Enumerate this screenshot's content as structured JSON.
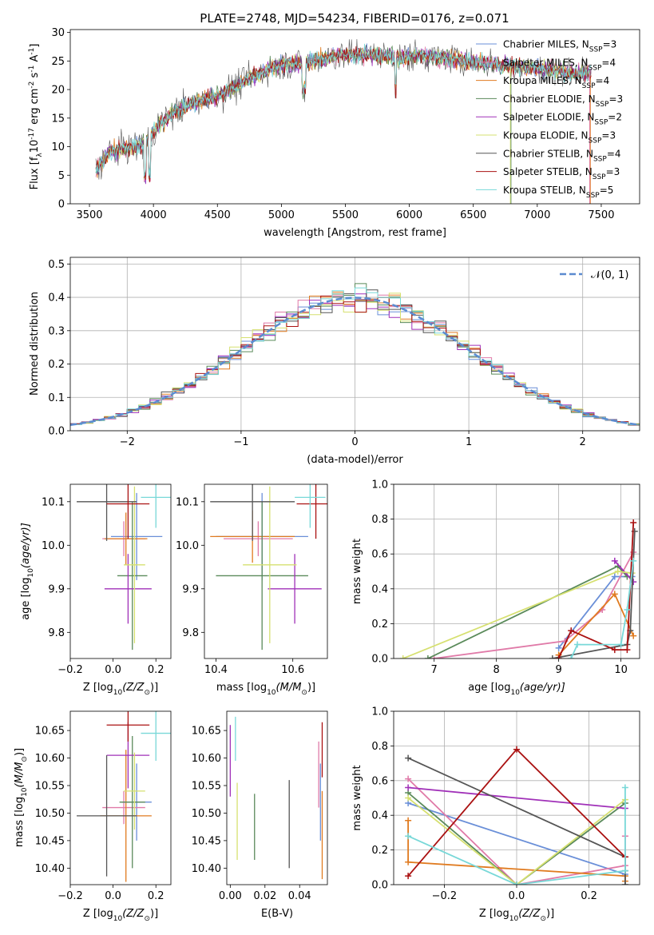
{
  "figure": {
    "title": "PLATE=2748, MJD=54234, FIBERID=0176, z=0.071"
  },
  "styles": {
    "colors": {
      "Chabrier MILES": "#6a8fd8",
      "Salpeter MILES": "#e07aa8",
      "Kroupa MILES": "#e07b20",
      "Chabrier ELODIE": "#5a8a5a",
      "Salpeter ELODIE": "#a030b8",
      "Kroupa ELODIE": "#d6e070",
      "Chabrier STELIB": "#555555",
      "Salpeter STELIB": "#aa1111",
      "Kroupa STELIB": "#78d8d8"
    },
    "normal_color": "#5b8bd0"
  },
  "chart_data": [
    {
      "id": "spectrum",
      "type": "line",
      "xlabel": "wavelength [Angstrom, rest frame]",
      "ylabel_main": "Flux [f",
      "ylabel_sub": "λ",
      "ylabel_rest": "10",
      "ylabel_sup1": "-17",
      "ylabel_mid": " erg cm",
      "ylabel_sup2": "-2",
      "ylabel_mid2": " s",
      "ylabel_sup3": "-1",
      "ylabel_mid3": " A",
      "ylabel_sup4": "-1",
      "ylabel_end": "]",
      "xlim": [
        3350,
        7800
      ],
      "ylim": [
        0,
        30.5
      ],
      "xticks": [
        3500,
        4000,
        4500,
        5000,
        5500,
        6000,
        6500,
        7000,
        7500
      ],
      "yticks": [
        0,
        5,
        10,
        15,
        20,
        25,
        30
      ],
      "continuum": [
        [
          3550,
          6
        ],
        [
          3650,
          9
        ],
        [
          3750,
          9.5
        ],
        [
          3850,
          10
        ],
        [
          3950,
          11
        ],
        [
          4050,
          14
        ],
        [
          4150,
          16
        ],
        [
          4250,
          17
        ],
        [
          4350,
          18
        ],
        [
          4450,
          18.5
        ],
        [
          4550,
          19.5
        ],
        [
          4650,
          20.5
        ],
        [
          4750,
          22
        ],
        [
          4850,
          23
        ],
        [
          4950,
          24
        ],
        [
          5050,
          24.5
        ],
        [
          5150,
          24.5
        ],
        [
          5250,
          25
        ],
        [
          5350,
          25.5
        ],
        [
          5450,
          26
        ],
        [
          5550,
          26
        ],
        [
          5650,
          26.3
        ],
        [
          5750,
          26
        ],
        [
          5850,
          25.8
        ],
        [
          5950,
          25.5
        ],
        [
          6050,
          26
        ],
        [
          6150,
          25.8
        ],
        [
          6250,
          25.5
        ],
        [
          6350,
          25.3
        ],
        [
          6450,
          25
        ],
        [
          6550,
          24.7
        ],
        [
          6650,
          24.5
        ],
        [
          6750,
          24.2
        ],
        [
          6850,
          24
        ],
        [
          6950,
          23.8
        ],
        [
          7050,
          23.5
        ],
        [
          7150,
          23.2
        ],
        [
          7250,
          23
        ],
        [
          7350,
          22.8
        ],
        [
          7420,
          22.5
        ]
      ],
      "legend": [
        {
          "name": "Chabrier MILES",
          "n": "3"
        },
        {
          "name": "Salpeter MILES",
          "n": "4"
        },
        {
          "name": "Kroupa MILES",
          "n": "4"
        },
        {
          "name": "Chabrier ELODIE",
          "n": "3"
        },
        {
          "name": "Salpeter ELODIE",
          "n": "2"
        },
        {
          "name": "Kroupa ELODIE",
          "n": "3"
        },
        {
          "name": "Chabrier STELIB",
          "n": "4"
        },
        {
          "name": "Salpeter STELIB",
          "n": "3"
        },
        {
          "name": "Kroupa STELIB",
          "n": "5"
        }
      ],
      "legend_prefix": "N",
      "legend_sub": "SSP",
      "legend_placement": "right"
    },
    {
      "id": "residuals",
      "type": "area",
      "xlabel": "(data-model)/error",
      "ylabel": "Normed distribution",
      "xlim": [
        -2.5,
        2.5
      ],
      "ylim": [
        0,
        0.52
      ],
      "xticks": [
        -2,
        -1,
        0,
        1,
        2
      ],
      "xtick_labels": [
        "−2",
        "−1",
        "0",
        "1",
        "2"
      ],
      "yticks": [
        0.0,
        0.1,
        0.2,
        0.3,
        0.4,
        0.5
      ],
      "ytick_labels": [
        "0.0",
        "0.1",
        "0.2",
        "0.3",
        "0.4",
        "0.5"
      ],
      "grid": true,
      "legend": "𝒩(0, 1)",
      "legend_placement": "top-right",
      "bin_width": 0.1
    },
    {
      "id": "age_vs_Z",
      "type": "scatter",
      "xlabel": "Z [log",
      "xlabel_sub": "10",
      "xlabel_rest": "(Z/Z",
      "xlabel_sun": "⊙",
      "xlabel_end": ")]",
      "ylabel": "age  [log",
      "ylabel_sub": "10",
      "ylabel_rest": "(age/yr)]",
      "xlim": [
        -0.2,
        0.27
      ],
      "ylim": [
        9.74,
        10.14
      ],
      "xticks": [
        -0.2,
        0.0,
        0.2
      ],
      "xtick_labels": [
        "−0.2",
        "0.0",
        "0.2"
      ],
      "yticks": [
        9.8,
        9.9,
        10.0,
        10.1
      ],
      "ytick_labels": [
        "9.8",
        "9.9",
        "10.0",
        "10.1"
      ],
      "points": [
        {
          "model": "Chabrier MILES",
          "x": 0.11,
          "y": 10.02,
          "xerr": 0.12,
          "yerr": 0.1
        },
        {
          "model": "Salpeter MILES",
          "x": 0.05,
          "y": 10.015,
          "xerr": 0.1,
          "yerr": 0.04
        },
        {
          "model": "Kroupa MILES",
          "x": 0.06,
          "y": 10.015,
          "xerr": 0.1,
          "yerr": 0.06
        },
        {
          "model": "Chabrier ELODIE",
          "x": 0.09,
          "y": 9.93,
          "xerr": 0.07,
          "yerr": 0.17
        },
        {
          "model": "Salpeter ELODIE",
          "x": 0.07,
          "y": 9.9,
          "xerr": 0.11,
          "yerr": 0.08
        },
        {
          "model": "Kroupa ELODIE",
          "x": 0.1,
          "y": 9.955,
          "xerr": 0.05,
          "yerr": 0.18
        },
        {
          "model": "Chabrier STELIB",
          "x": -0.03,
          "y": 10.1,
          "xerr": 0.14,
          "yerr": 0.09
        },
        {
          "model": "Salpeter STELIB",
          "x": 0.07,
          "y": 10.095,
          "xerr": 0.1,
          "yerr": 0.08
        },
        {
          "model": "Kroupa STELIB",
          "x": 0.2,
          "y": 10.11,
          "xerr": 0.07,
          "yerr": 0.07
        }
      ]
    },
    {
      "id": "age_vs_mass",
      "type": "scatter",
      "xlabel": "mass [log",
      "xlabel_sub": "10",
      "xlabel_rest": "(M/M",
      "xlabel_sun": "⊙",
      "xlabel_end": ")]",
      "xlim": [
        10.37,
        10.69
      ],
      "ylim": [
        9.74,
        10.14
      ],
      "xticks": [
        10.4,
        10.6
      ],
      "xtick_labels": [
        "10.4",
        "10.6"
      ],
      "yticks": [
        9.8,
        9.9,
        10.0,
        10.1
      ],
      "ytick_labels": [
        "9.8",
        "9.9",
        "10.0",
        "10.1"
      ],
      "points": [
        {
          "model": "Chabrier MILES",
          "x": 10.52,
          "y": 10.02,
          "xerr": 0.12,
          "yerr": 0.1
        },
        {
          "model": "Salpeter MILES",
          "x": 10.51,
          "y": 10.015,
          "xerr": 0.09,
          "yerr": 0.04
        },
        {
          "model": "Kroupa MILES",
          "x": 10.495,
          "y": 10.02,
          "xerr": 0.11,
          "yerr": 0.06
        },
        {
          "model": "Chabrier ELODIE",
          "x": 10.52,
          "y": 9.93,
          "xerr": 0.12,
          "yerr": 0.17
        },
        {
          "model": "Salpeter ELODIE",
          "x": 10.605,
          "y": 9.9,
          "xerr": 0.07,
          "yerr": 0.08
        },
        {
          "model": "Kroupa ELODIE",
          "x": 10.54,
          "y": 9.955,
          "xerr": 0.07,
          "yerr": 0.18
        },
        {
          "model": "Chabrier STELIB",
          "x": 10.495,
          "y": 10.1,
          "xerr": 0.11,
          "yerr": 0.09
        },
        {
          "model": "Salpeter STELIB",
          "x": 10.66,
          "y": 10.095,
          "xerr": 0.05,
          "yerr": 0.08
        },
        {
          "model": "Kroupa STELIB",
          "x": 10.645,
          "y": 10.11,
          "xerr": 0.04,
          "yerr": 0.07
        }
      ]
    },
    {
      "id": "weight_vs_age",
      "type": "line",
      "xlabel": "age  [log",
      "xlabel_sub": "10",
      "xlabel_rest": "(age/yr)]",
      "ylabel": "mass weight",
      "xlim": [
        6.35,
        10.3
      ],
      "ylim": [
        0,
        1.0
      ],
      "xticks": [
        7,
        8,
        9,
        10
      ],
      "xtick_labels": [
        "7",
        "8",
        "9",
        "10"
      ],
      "yticks": [
        0.0,
        0.2,
        0.4,
        0.6,
        0.8,
        1.0
      ],
      "ytick_labels": [
        "0.0",
        "0.2",
        "0.4",
        "0.6",
        "0.8",
        "1.0"
      ],
      "grid": true,
      "series": [
        {
          "model": "Chabrier MILES",
          "x": [
            9.0,
            9.9,
            10.18
          ],
          "y": [
            0.06,
            0.47,
            0.47
          ]
        },
        {
          "model": "Salpeter MILES",
          "x": [
            7.0,
            9.1,
            9.7,
            10.2
          ],
          "y": [
            0.0,
            0.1,
            0.28,
            0.61
          ]
        },
        {
          "model": "Kroupa MILES",
          "x": [
            9.0,
            9.9,
            10.2
          ],
          "y": [
            0.02,
            0.37,
            0.13
          ]
        },
        {
          "model": "Chabrier ELODIE",
          "x": [
            6.9,
            9.95,
            10.1
          ],
          "y": [
            0.0,
            0.53,
            0.47
          ]
        },
        {
          "model": "Salpeter ELODIE",
          "x": [
            9.9,
            10.2
          ],
          "y": [
            0.56,
            0.44
          ]
        },
        {
          "model": "Kroupa ELODIE",
          "x": [
            6.5,
            9.95,
            10.18
          ],
          "y": [
            0.0,
            0.5,
            0.49
          ]
        },
        {
          "model": "Chabrier STELIB",
          "x": [
            8.9,
            10.1,
            10.15,
            10.22
          ],
          "y": [
            0.0,
            0.08,
            0.16,
            0.73
          ]
        },
        {
          "model": "Salpeter STELIB",
          "x": [
            9.0,
            9.2,
            9.9,
            10.1,
            10.2
          ],
          "y": [
            0.0,
            0.16,
            0.05,
            0.05,
            0.78
          ]
        },
        {
          "model": "Kroupa STELIB",
          "x": [
            9.2,
            9.3,
            10.0,
            10.1,
            10.2
          ],
          "y": [
            0.0,
            0.08,
            0.08,
            0.28,
            0.56
          ]
        }
      ]
    },
    {
      "id": "mass_vs_Z",
      "type": "scatter",
      "xlabel": "Z [log",
      "xlabel_sub": "10",
      "xlabel_rest": "(Z/Z",
      "xlabel_sun": "⊙",
      "xlabel_end": ")]",
      "ylabel": "mass [log",
      "ylabel_sub": "10",
      "ylabel_rest": "(M/M",
      "ylabel_sun": "⊙",
      "ylabel_end": ")]",
      "xlim": [
        -0.2,
        0.27
      ],
      "ylim": [
        10.37,
        10.685
      ],
      "xticks": [
        -0.2,
        0.0,
        0.2
      ],
      "xtick_labels": [
        "−0.2",
        "0.0",
        "0.2"
      ],
      "yticks": [
        10.4,
        10.45,
        10.5,
        10.55,
        10.6,
        10.65
      ],
      "ytick_labels": [
        "10.40",
        "10.45",
        "10.50",
        "10.55",
        "10.60",
        "10.65"
      ],
      "points": [
        {
          "model": "Chabrier MILES",
          "x": 0.11,
          "y": 10.52,
          "xerr": 0.07,
          "yerr": 0.07
        },
        {
          "model": "Salpeter MILES",
          "x": 0.05,
          "y": 10.51,
          "xerr": 0.1,
          "yerr": 0.03
        },
        {
          "model": "Kroupa MILES",
          "x": 0.06,
          "y": 10.495,
          "xerr": 0.12,
          "yerr": 0.12
        },
        {
          "model": "Chabrier ELODIE",
          "x": 0.09,
          "y": 10.52,
          "xerr": 0.06,
          "yerr": 0.12
        },
        {
          "model": "Salpeter ELODIE",
          "x": 0.07,
          "y": 10.605,
          "xerr": 0.1,
          "yerr": 0.06
        },
        {
          "model": "Kroupa ELODIE",
          "x": 0.1,
          "y": 10.54,
          "xerr": 0.05,
          "yerr": 0.07
        },
        {
          "model": "Chabrier STELIB",
          "x": -0.03,
          "y": 10.495,
          "xerr": 0.14,
          "yerr": 0.11
        },
        {
          "model": "Salpeter STELIB",
          "x": 0.07,
          "y": 10.66,
          "xerr": 0.1,
          "yerr": 0.03
        },
        {
          "model": "Kroupa STELIB",
          "x": 0.2,
          "y": 10.645,
          "xerr": 0.07,
          "yerr": 0.05
        }
      ]
    },
    {
      "id": "mass_vs_ebv",
      "type": "scatter",
      "xlabel": "E(B-V)",
      "xlim": [
        -0.002,
        0.056
      ],
      "ylim": [
        10.37,
        10.685
      ],
      "xticks": [
        0.0,
        0.02,
        0.04
      ],
      "xtick_labels": [
        "0.00",
        "0.02",
        "0.04"
      ],
      "yticks": [
        10.4,
        10.45,
        10.5,
        10.55,
        10.6,
        10.65
      ],
      "ytick_labels": [
        "10.40",
        "10.45",
        "10.50",
        "10.55",
        "10.60",
        "10.65"
      ],
      "points": [
        {
          "model": "Chabrier MILES",
          "x": 0.052,
          "y": 10.52,
          "xerr": 0.0,
          "yerr": 0.07
        },
        {
          "model": "Salpeter MILES",
          "x": 0.051,
          "y": 10.57,
          "xerr": 0.0,
          "yerr": 0.06
        },
        {
          "model": "Kroupa MILES",
          "x": 0.053,
          "y": 10.46,
          "xerr": 0.0,
          "yerr": 0.08
        },
        {
          "model": "Chabrier ELODIE",
          "x": 0.014,
          "y": 10.475,
          "xerr": 0.0,
          "yerr": 0.06
        },
        {
          "model": "Salpeter ELODIE",
          "x": 0.0,
          "y": 10.595,
          "xerr": 0.0,
          "yerr": 0.065
        },
        {
          "model": "Kroupa ELODIE",
          "x": 0.004,
          "y": 10.485,
          "xerr": 0.0,
          "yerr": 0.07
        },
        {
          "model": "Chabrier STELIB",
          "x": 0.034,
          "y": 10.48,
          "xerr": 0.0,
          "yerr": 0.08
        },
        {
          "model": "Salpeter STELIB",
          "x": 0.053,
          "y": 10.615,
          "xerr": 0.0,
          "yerr": 0.05
        },
        {
          "model": "Kroupa STELIB",
          "x": 0.003,
          "y": 10.635,
          "xerr": 0.0,
          "yerr": 0.04
        }
      ]
    },
    {
      "id": "weight_vs_Z",
      "type": "line",
      "xlabel": "Z [log",
      "xlabel_sub": "10",
      "xlabel_rest": "(Z/Z",
      "xlabel_sun": "⊙",
      "xlabel_end": ")]",
      "ylabel": "mass weight",
      "xlim": [
        -0.34,
        0.34
      ],
      "ylim": [
        0,
        1.0
      ],
      "xticks": [
        -0.2,
        0.0,
        0.2
      ],
      "xtick_labels": [
        "−0.2",
        "0.0",
        "0.2"
      ],
      "yticks": [
        0.0,
        0.2,
        0.4,
        0.6,
        0.8,
        1.0
      ],
      "ytick_labels": [
        "0.0",
        "0.2",
        "0.4",
        "0.6",
        "0.8",
        "1.0"
      ],
      "grid": true,
      "series": [
        {
          "model": "Chabrier MILES",
          "x": [
            -0.3,
            0.3
          ],
          "y": [
            0.47,
            0.06
          ]
        },
        {
          "model": "Salpeter MILES",
          "x": [
            -0.3,
            0.0,
            0.3,
            0.3
          ],
          "y": [
            0.61,
            0.0,
            0.11,
            0.28
          ]
        },
        {
          "model": "Kroupa MILES",
          "x": [
            -0.3,
            -0.3,
            0.3,
            0.3
          ],
          "y": [
            0.37,
            0.13,
            0.05,
            0.02
          ]
        },
        {
          "model": "Chabrier ELODIE",
          "x": [
            -0.3,
            0.0,
            0.3
          ],
          "y": [
            0.53,
            0.0,
            0.47
          ]
        },
        {
          "model": "Salpeter ELODIE",
          "x": [
            -0.3,
            0.3
          ],
          "y": [
            0.56,
            0.44
          ]
        },
        {
          "model": "Kroupa ELODIE",
          "x": [
            -0.3,
            0.0,
            0.3
          ],
          "y": [
            0.5,
            0.0,
            0.49
          ]
        },
        {
          "model": "Chabrier STELIB",
          "x": [
            -0.3,
            0.3,
            0.3,
            0.3
          ],
          "y": [
            0.73,
            0.16,
            0.08,
            0.0
          ]
        },
        {
          "model": "Salpeter STELIB",
          "x": [
            -0.3,
            0.0,
            0.3
          ],
          "y": [
            0.05,
            0.78,
            0.16
          ]
        },
        {
          "model": "Kroupa STELIB",
          "x": [
            -0.3,
            0.0,
            0.3,
            0.3
          ],
          "y": [
            0.28,
            0.0,
            0.08,
            0.56
          ]
        }
      ]
    }
  ]
}
